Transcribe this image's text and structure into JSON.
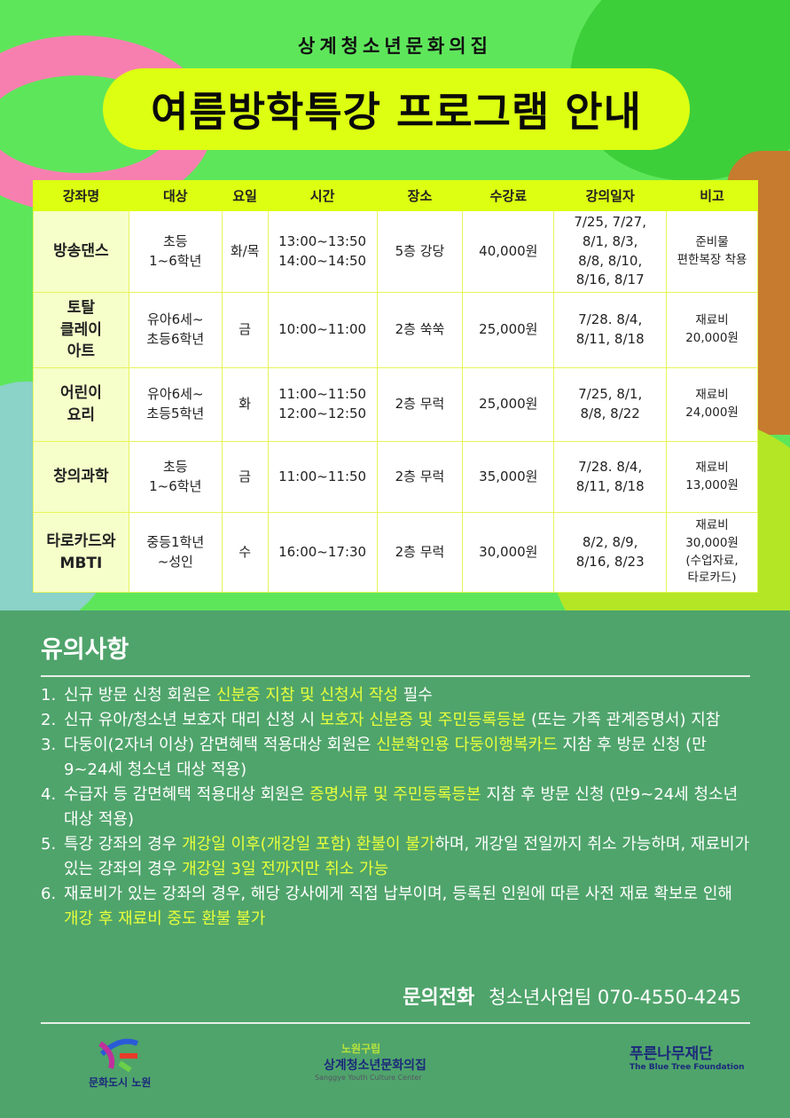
{
  "header": {
    "subtitle": "상계청소년문화의집",
    "title": "여름방학특강 프로그램 안내"
  },
  "table": {
    "columns": [
      "강좌명",
      "대상",
      "요일",
      "시간",
      "장소",
      "수강료",
      "강의일자",
      "비고"
    ],
    "rows": [
      [
        "방송댄스",
        "초등\n1~6학년",
        "화/목",
        "13:00~13:50\n14:00~14:50",
        "5층 강당",
        "40,000원",
        "7/25, 7/27,\n8/1, 8/3,\n8/8, 8/10,\n8/16, 8/17",
        "준비물\n편한복장 착용"
      ],
      [
        "토탈\n클레이\n아트",
        "유아6세~\n초등6학년",
        "금",
        "10:00~11:00",
        "2층 쑥쑥",
        "25,000원",
        "7/28. 8/4,\n8/11, 8/18",
        "재료비\n20,000원"
      ],
      [
        "어린이\n요리",
        "유아6세~\n초등5학년",
        "화",
        "11:00~11:50\n12:00~12:50",
        "2층 무럭",
        "25,000원",
        "7/25, 8/1,\n8/8, 8/22",
        "재료비\n24,000원"
      ],
      [
        "창의과학",
        "초등\n1~6학년",
        "금",
        "11:00~11:50",
        "2층 무럭",
        "35,000원",
        "7/28. 8/4,\n8/11, 8/18",
        "재료비\n13,000원"
      ],
      [
        "타로카드와\nMBTI",
        "중등1학년\n~성인",
        "수",
        "16:00~17:30",
        "2층 무럭",
        "30,000원",
        "8/2, 8/9,\n8/16, 8/23",
        "재료비\n30,000원\n(수업자료,\n타로카드)"
      ]
    ]
  },
  "notice": {
    "title": "유의사항",
    "items": [
      {
        "num": "1.",
        "segments": [
          {
            "t": "신규 방문 신청 회원은 "
          },
          {
            "t": "신분증 지참 및 신청서 작성",
            "hl": true
          },
          {
            "t": " 필수"
          }
        ]
      },
      {
        "num": "2.",
        "segments": [
          {
            "t": "신규 유아/청소년 보호자 대리 신청 시 "
          },
          {
            "t": "보호자 신분증 및 주민등록등본",
            "hl": true
          },
          {
            "t": " (또는 가족 관계증명서) 지참"
          }
        ]
      },
      {
        "num": "3.",
        "segments": [
          {
            "t": "다둥이(2자녀 이상) 감면혜택 적용대상 회원은 "
          },
          {
            "t": "신분확인용 다둥이행복카드",
            "hl": true
          },
          {
            "t": " 지참 후 방문 신청 (만9~24세 청소년 대상 적용)"
          }
        ]
      },
      {
        "num": "4.",
        "segments": [
          {
            "t": "수급자 등 감면혜택 적용대상 회원은 "
          },
          {
            "t": "증명서류 및 주민등록등본",
            "hl": true
          },
          {
            "t": " 지참 후 방문 신청 (만9~24세 청소년 대상 적용)"
          }
        ]
      },
      {
        "num": "5.",
        "segments": [
          {
            "t": "특강 강좌의 경우 "
          },
          {
            "t": "개강일 이후(개강일 포함) 환불이 불가",
            "hl": true
          },
          {
            "t": "하며, 개강일 전일까지 취소 가능하며, 재료비가 있는 강좌의 경우 "
          },
          {
            "t": "개강일 3일 전까지만 취소 가능",
            "hl": true
          }
        ]
      },
      {
        "num": "6.",
        "segments": [
          {
            "t": "재료비가 있는 강좌의 경우, 해당 강사에게 직접 납부이며, 등록된 인원에 따른 사전 재료 확보로 인해 "
          },
          {
            "t": "개강 후 재료비 중도 환불 불가",
            "hl": true
          }
        ]
      }
    ],
    "contact_label": "문의전화",
    "contact_value": "청소년사업팀 070-4550-4245"
  },
  "logos": {
    "nowon": "문화도시 노원",
    "center_top": "노원구립",
    "center": "상계청소년문화의집",
    "center_en": "Sanggye Youth Culture Center",
    "bluetree": "푸른나무재단",
    "bluetree_en": "The Blue Tree Foundation"
  },
  "colors": {
    "background": "#5ee65b",
    "accent": "#dcff12",
    "notice_bg": "#4fa46b",
    "highlight": "#e8ff3c"
  }
}
